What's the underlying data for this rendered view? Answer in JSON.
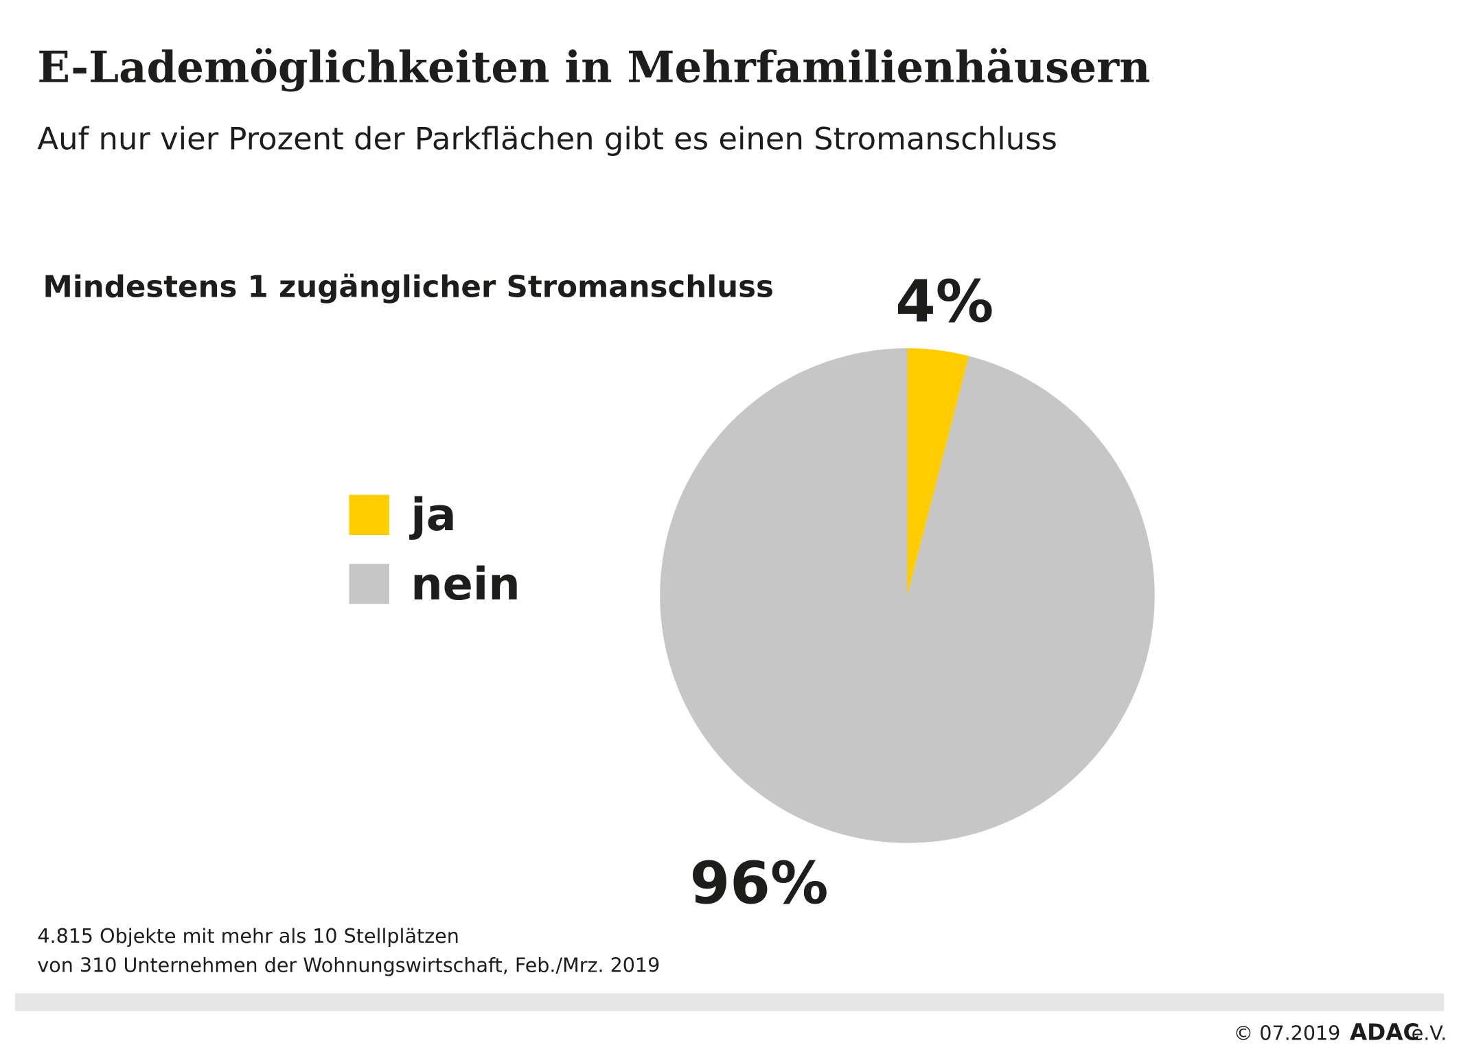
{
  "chart_data": {
    "type": "pie",
    "title": "E-Lademöglichkeiten in Mehrfamilienhäusern",
    "subtitle": "Auf nur vier Prozent der Parkflächen gibt es einen Stromanschluss",
    "chart_heading": "Mindestens 1 zugänglicher Stromanschluss",
    "categories": [
      "ja",
      "nein"
    ],
    "values": [
      4,
      96
    ],
    "value_labels": [
      "4%",
      "96%"
    ],
    "colors": [
      "#ffcc00",
      "#c6c6c6"
    ],
    "source": [
      "4.815 Objekte mit mehr als 10 Stellplätzen",
      "von 310 Unternehmen der Wohnungswirtschaft, Feb./Mrz. 2019"
    ]
  },
  "footer": {
    "date": "© 07.2019",
    "brand": "ADAC",
    "suffix": "e.V."
  }
}
